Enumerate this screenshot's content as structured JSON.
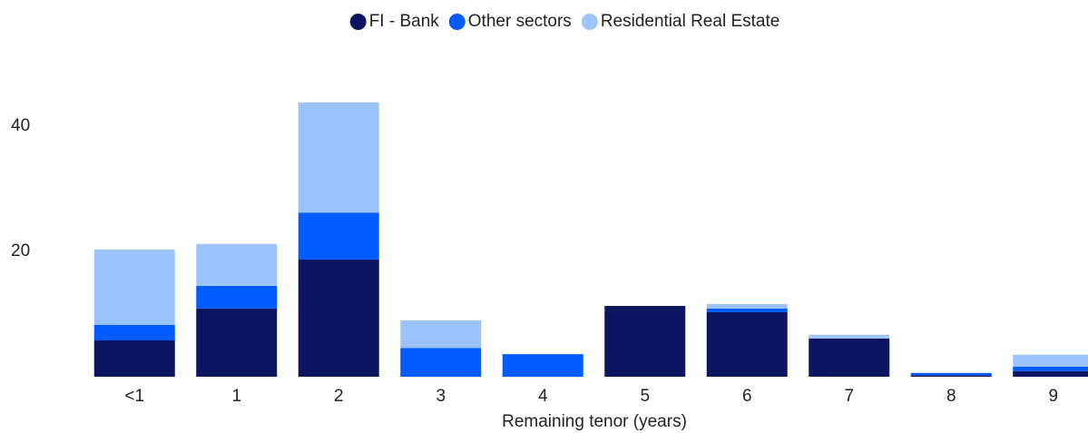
{
  "chart_data": {
    "type": "stacked_bar",
    "x_label": "Remaining tenor (years)",
    "categories": [
      "<1",
      "1",
      "2",
      "3",
      "4",
      "5",
      "6",
      "7",
      "8",
      "9"
    ],
    "series": [
      {
        "name": "FI - Bank",
        "color": "#0b1560",
        "values": [
          5.8,
          10.9,
          18.7,
          0,
          0,
          11.3,
          10.3,
          6.1,
          0.2,
          0.9
        ]
      },
      {
        "name": "Other sectors",
        "color": "#005cff",
        "values": [
          2.5,
          3.6,
          7.5,
          4.6,
          3.6,
          0,
          0.6,
          0,
          0.4,
          0.7
        ]
      },
      {
        "name": "Residential Real Estate",
        "color": "#9dc3fd",
        "values": [
          12.0,
          6.7,
          17.6,
          4.4,
          0,
          0,
          0.7,
          0.6,
          0,
          1.9
        ]
      }
    ],
    "ylim": [
      0,
      45
    ],
    "yticks": [
      20,
      40
    ],
    "grid": false,
    "legend": "top"
  }
}
